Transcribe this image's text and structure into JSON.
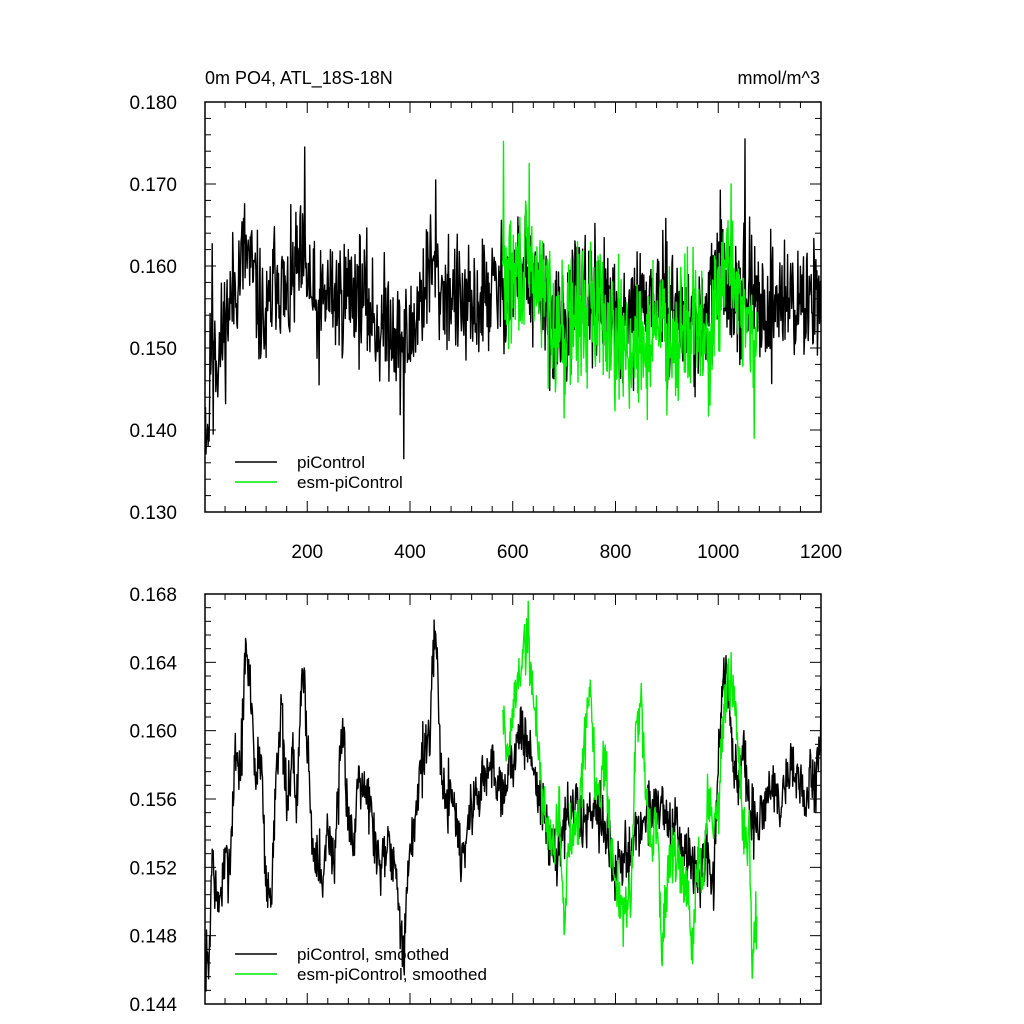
{
  "chart_data": [
    {
      "type": "line",
      "title": "0m PO4, ATL_18S-18N",
      "units": "mmol/m^3",
      "xlabel": "",
      "ylabel": "",
      "xlim": [
        1,
        1200
      ],
      "ylim": [
        0.13,
        0.18
      ],
      "x_ticks": [
        "200",
        "400",
        "600",
        "800",
        "1000",
        "1200"
      ],
      "y_ticks": [
        "0.130",
        "0.140",
        "0.150",
        "0.160",
        "0.170",
        "0.180"
      ],
      "legend_placement": "bottom-left",
      "colors": {
        "piControl": "#000000",
        "esm-piControl": "#00ee00"
      },
      "series": [
        {
          "name": "piControl",
          "x_range": [
            1,
            1200
          ],
          "anchors": [
            [
              1,
              0.142
            ],
            [
              8,
              0.14
            ],
            [
              15,
              0.156
            ],
            [
              25,
              0.148
            ],
            [
              40,
              0.153
            ],
            [
              60,
              0.158
            ],
            [
              80,
              0.162
            ],
            [
              100,
              0.157
            ],
            [
              120,
              0.152
            ],
            [
              140,
              0.16
            ],
            [
              160,
              0.155
            ],
            [
              180,
              0.16
            ],
            [
              200,
              0.159
            ],
            [
              220,
              0.153
            ],
            [
              240,
              0.157
            ],
            [
              260,
              0.156
            ],
            [
              280,
              0.157
            ],
            [
              300,
              0.157
            ],
            [
              320,
              0.155
            ],
            [
              340,
              0.152
            ],
            [
              360,
              0.154
            ],
            [
              380,
              0.15
            ],
            [
              400,
              0.151
            ],
            [
              420,
              0.156
            ],
            [
              440,
              0.16
            ],
            [
              460,
              0.157
            ],
            [
              480,
              0.157
            ],
            [
              500,
              0.155
            ],
            [
              520,
              0.154
            ],
            [
              540,
              0.156
            ],
            [
              560,
              0.157
            ],
            [
              580,
              0.157
            ],
            [
              600,
              0.158
            ],
            [
              620,
              0.16
            ],
            [
              640,
              0.156
            ],
            [
              660,
              0.156
            ],
            [
              680,
              0.152
            ],
            [
              700,
              0.153
            ],
            [
              720,
              0.156
            ],
            [
              740,
              0.155
            ],
            [
              760,
              0.156
            ],
            [
              780,
              0.155
            ],
            [
              800,
              0.152
            ],
            [
              820,
              0.152
            ],
            [
              840,
              0.155
            ],
            [
              860,
              0.155
            ],
            [
              880,
              0.156
            ],
            [
              900,
              0.155
            ],
            [
              920,
              0.155
            ],
            [
              940,
              0.153
            ],
            [
              960,
              0.152
            ],
            [
              980,
              0.154
            ],
            [
              1000,
              0.16
            ],
            [
              1020,
              0.159
            ],
            [
              1040,
              0.157
            ],
            [
              1060,
              0.157
            ],
            [
              1080,
              0.155
            ],
            [
              1100,
              0.155
            ],
            [
              1120,
              0.156
            ],
            [
              1140,
              0.156
            ],
            [
              1160,
              0.155
            ],
            [
              1180,
              0.156
            ],
            [
              1200,
              0.159
            ]
          ],
          "noise": 0.0055,
          "seed": 11,
          "extremes": [
            [
              17,
              0.1395
            ],
            [
              195,
              0.1745
            ],
            [
              388,
              0.1365
            ],
            [
              450,
              0.1705
            ],
            [
              585,
              0.1575
            ],
            [
              1052,
              0.1755
            ]
          ]
        },
        {
          "name": "esm-piControl",
          "x_range": [
            580,
            1075
          ],
          "anchors": [
            [
              580,
              0.158
            ],
            [
              600,
              0.158
            ],
            [
              620,
              0.16
            ],
            [
              640,
              0.159
            ],
            [
              660,
              0.157
            ],
            [
              680,
              0.154
            ],
            [
              700,
              0.152
            ],
            [
              720,
              0.154
            ],
            [
              740,
              0.154
            ],
            [
              760,
              0.156
            ],
            [
              780,
              0.154
            ],
            [
              800,
              0.152
            ],
            [
              820,
              0.151
            ],
            [
              840,
              0.149
            ],
            [
              860,
              0.15
            ],
            [
              880,
              0.154
            ],
            [
              900,
              0.152
            ],
            [
              920,
              0.152
            ],
            [
              940,
              0.154
            ],
            [
              960,
              0.152
            ],
            [
              980,
              0.15
            ],
            [
              1000,
              0.155
            ],
            [
              1020,
              0.16
            ],
            [
              1040,
              0.157
            ],
            [
              1060,
              0.152
            ],
            [
              1075,
              0.147
            ]
          ],
          "noise": 0.006,
          "seed": 29,
          "extremes": [
            [
              582,
              0.1752
            ],
            [
              632,
              0.1725
            ],
            [
              700,
              0.1415
            ],
            [
              1025,
              0.17
            ],
            [
              1070,
              0.139
            ]
          ]
        }
      ]
    },
    {
      "type": "line",
      "title": "",
      "xlabel": "",
      "ylabel": "",
      "xlim": [
        1,
        1200
      ],
      "ylim": [
        0.144,
        0.168
      ],
      "y_ticks": [
        "0.144",
        "0.148",
        "0.152",
        "0.156",
        "0.160",
        "0.164",
        "0.168"
      ],
      "legend_placement": "bottom-left",
      "colors": {
        "piControl, smoothed": "#000000",
        "esm-piControl, smoothed": "#00ee00"
      },
      "series": [
        {
          "name": "piControl, smoothed",
          "x_range": [
            1,
            1200
          ],
          "anchors": [
            [
              1,
              0.147
            ],
            [
              8,
              0.1458
            ],
            [
              15,
              0.153
            ],
            [
              25,
              0.1495
            ],
            [
              40,
              0.152
            ],
            [
              50,
              0.1525
            ],
            [
              60,
              0.159
            ],
            [
              70,
              0.1575
            ],
            [
              80,
              0.1645
            ],
            [
              90,
              0.1625
            ],
            [
              100,
              0.157
            ],
            [
              110,
              0.159
            ],
            [
              120,
              0.151
            ],
            [
              130,
              0.15
            ],
            [
              140,
              0.1585
            ],
            [
              150,
              0.161
            ],
            [
              160,
              0.155
            ],
            [
              170,
              0.159
            ],
            [
              180,
              0.1555
            ],
            [
              190,
              0.164
            ],
            [
              200,
              0.16
            ],
            [
              210,
              0.153
            ],
            [
              220,
              0.1535
            ],
            [
              230,
              0.1505
            ],
            [
              240,
              0.155
            ],
            [
              250,
              0.152
            ],
            [
              260,
              0.1555
            ],
            [
              270,
              0.16
            ],
            [
              280,
              0.155
            ],
            [
              290,
              0.153
            ],
            [
              300,
              0.158
            ],
            [
              320,
              0.156
            ],
            [
              340,
              0.152
            ],
            [
              360,
              0.154
            ],
            [
              380,
              0.15
            ],
            [
              388,
              0.1462
            ],
            [
              395,
              0.151
            ],
            [
              410,
              0.155
            ],
            [
              420,
              0.158
            ],
            [
              430,
              0.159
            ],
            [
              440,
              0.16
            ],
            [
              450,
              0.167
            ],
            [
              458,
              0.159
            ],
            [
              470,
              0.1555
            ],
            [
              480,
              0.157
            ],
            [
              500,
              0.1525
            ],
            [
              520,
              0.1555
            ],
            [
              540,
              0.157
            ],
            [
              560,
              0.158
            ],
            [
              580,
              0.1565
            ],
            [
              600,
              0.1585
            ],
            [
              620,
              0.16
            ],
            [
              640,
              0.158
            ],
            [
              660,
              0.155
            ],
            [
              680,
              0.1525
            ],
            [
              700,
              0.1545
            ],
            [
              720,
              0.1555
            ],
            [
              740,
              0.1545
            ],
            [
              760,
              0.156
            ],
            [
              780,
              0.1545
            ],
            [
              800,
              0.1515
            ],
            [
              820,
              0.1525
            ],
            [
              840,
              0.154
            ],
            [
              860,
              0.155
            ],
            [
              880,
              0.156
            ],
            [
              900,
              0.155
            ],
            [
              920,
              0.154
            ],
            [
              940,
              0.1525
            ],
            [
              960,
              0.1515
            ],
            [
              980,
              0.1525
            ],
            [
              990,
              0.15
            ],
            [
              1000,
              0.158
            ],
            [
              1010,
              0.163
            ],
            [
              1020,
              0.1625
            ],
            [
              1030,
              0.158
            ],
            [
              1040,
              0.157
            ],
            [
              1050,
              0.159
            ],
            [
              1060,
              0.155
            ],
            [
              1070,
              0.1545
            ],
            [
              1080,
              0.1545
            ],
            [
              1100,
              0.157
            ],
            [
              1120,
              0.1555
            ],
            [
              1140,
              0.158
            ],
            [
              1160,
              0.157
            ],
            [
              1170,
              0.1555
            ],
            [
              1180,
              0.1575
            ],
            [
              1190,
              0.1565
            ],
            [
              1200,
              0.161
            ]
          ],
          "noise": 0.0014,
          "seed": 7
        },
        {
          "name": "esm-piControl, smoothed",
          "x_range": [
            580,
            1075
          ],
          "anchors": [
            [
              580,
              0.162
            ],
            [
              590,
              0.158
            ],
            [
              600,
              0.161
            ],
            [
              610,
              0.163
            ],
            [
              620,
              0.1645
            ],
            [
              630,
              0.1655
            ],
            [
              640,
              0.162
            ],
            [
              650,
              0.159
            ],
            [
              660,
              0.1555
            ],
            [
              670,
              0.154
            ],
            [
              680,
              0.1535
            ],
            [
              690,
              0.1555
            ],
            [
              700,
              0.1485
            ],
            [
              710,
              0.1535
            ],
            [
              720,
              0.155
            ],
            [
              730,
              0.1555
            ],
            [
              740,
              0.1595
            ],
            [
              750,
              0.163
            ],
            [
              760,
              0.157
            ],
            [
              770,
              0.156
            ],
            [
              780,
              0.159
            ],
            [
              790,
              0.153
            ],
            [
              800,
              0.1515
            ],
            [
              810,
              0.15
            ],
            [
              820,
              0.149
            ],
            [
              830,
              0.15
            ],
            [
              840,
              0.16
            ],
            [
              850,
              0.162
            ],
            [
              860,
              0.1565
            ],
            [
              870,
              0.153
            ],
            [
              880,
              0.155
            ],
            [
              890,
              0.147
            ],
            [
              900,
              0.151
            ],
            [
              910,
              0.153
            ],
            [
              920,
              0.152
            ],
            [
              930,
              0.151
            ],
            [
              940,
              0.1505
            ],
            [
              950,
              0.1465
            ],
            [
              960,
              0.153
            ],
            [
              970,
              0.151
            ],
            [
              980,
              0.156
            ],
            [
              990,
              0.155
            ],
            [
              1000,
              0.1555
            ],
            [
              1010,
              0.16
            ],
            [
              1020,
              0.1635
            ],
            [
              1030,
              0.162
            ],
            [
              1040,
              0.158
            ],
            [
              1050,
              0.153
            ],
            [
              1060,
              0.154
            ],
            [
              1065,
              0.1465
            ],
            [
              1070,
              0.148
            ],
            [
              1075,
              0.1485
            ]
          ],
          "noise": 0.0014,
          "seed": 19
        }
      ]
    }
  ]
}
